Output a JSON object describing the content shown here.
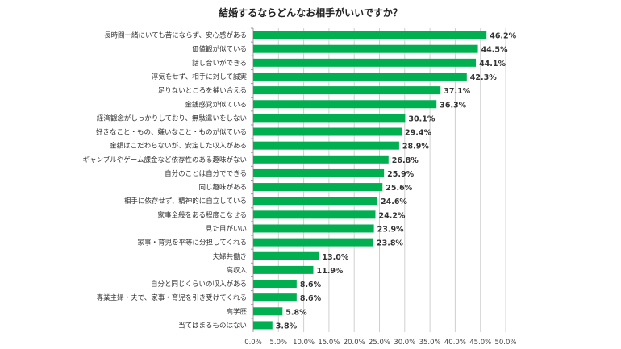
{
  "chart_data": {
    "type": "bar",
    "orientation": "horizontal",
    "title": "結婚するならどんなお相手がいいですか？",
    "xlabel": "",
    "ylabel": "",
    "xlim": [
      0,
      50
    ],
    "grid": "vertical",
    "color": "#00b050",
    "tick_labels": [
      "0.0%",
      "5.0%",
      "10.0%",
      "15.0%",
      "20.0%",
      "25.0%",
      "30.0%",
      "35.0%",
      "40.0%",
      "45.0%",
      "50.0%"
    ],
    "categories": [
      "長時間一緒にいても苦にならず、安心感がある",
      "価値観が似ている",
      "話し合いができる",
      "浮気をせず、相手に対して誠実",
      "足りないところを補い合える",
      "金銭感覚が似ている",
      "経済観念がしっかりしており、無駄遣いをしない",
      "好きなこと・もの、嫌いなこと・ものが似ている",
      "金額はこだわらないが、安定した収入がある",
      "ギャンブルやゲーム課金など依存性のある趣味がない",
      "自分のことは自分でできる",
      "同じ趣味がある",
      "相手に依存せず、精神的に自立している",
      "家事全般をある程度こなせる",
      "見た目がいい",
      "家事・育児を平等に分担してくれる",
      "夫婦共働き",
      "高収入",
      "自分と同じくらいの収入がある",
      "専業主婦・夫で、家事・育児を引き受けてくれる",
      "高学歴",
      "当てはまるものはない"
    ],
    "values": [
      46.2,
      44.5,
      44.1,
      42.3,
      37.1,
      36.3,
      30.1,
      29.4,
      28.9,
      26.8,
      25.9,
      25.6,
      24.6,
      24.2,
      23.9,
      23.8,
      13.0,
      11.9,
      8.6,
      8.6,
      5.8,
      3.8
    ],
    "value_labels": [
      "46.2%",
      "44.5%",
      "44.1%",
      "42.3%",
      "37.1%",
      "36.3%",
      "30.1%",
      "29.4%",
      "28.9%",
      "26.8%",
      "25.9%",
      "25.6%",
      "24.6%",
      "24.2%",
      "23.9%",
      "23.8%",
      "13.0%",
      "11.9%",
      "8.6%",
      "8.6%",
      "5.8%",
      "3.8%"
    ]
  }
}
